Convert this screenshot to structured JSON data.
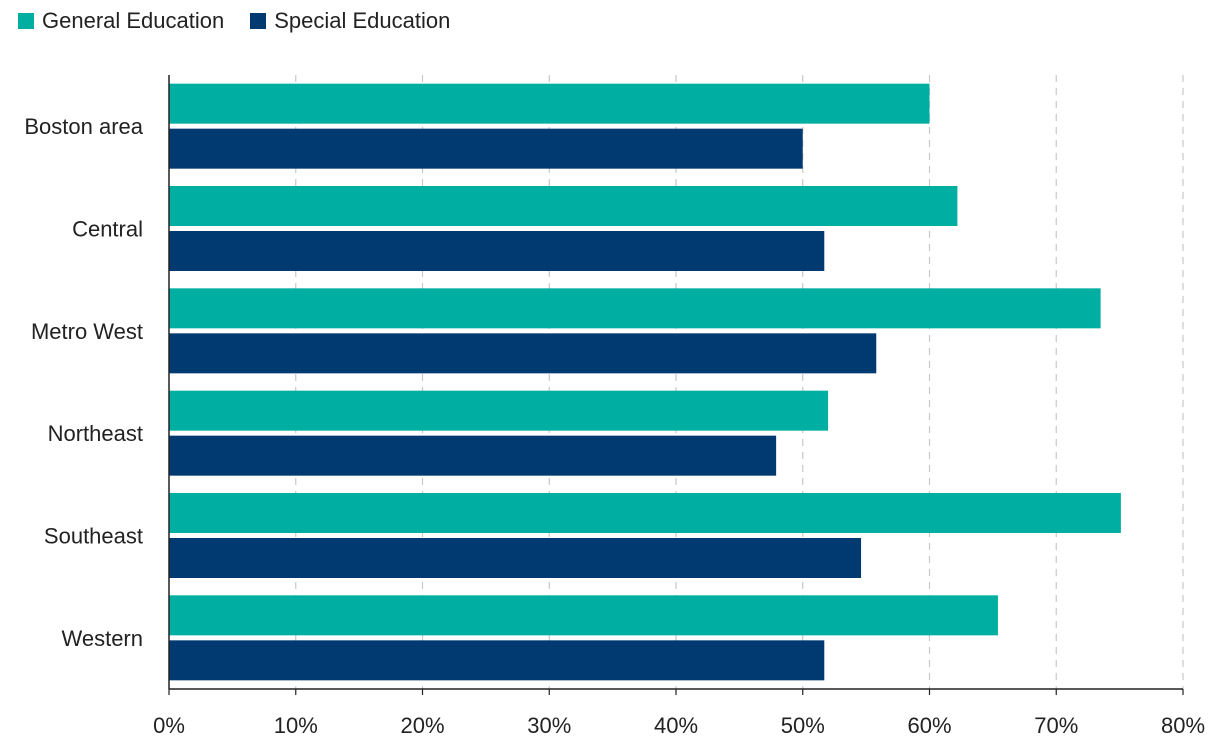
{
  "chart_data": {
    "type": "bar",
    "orientation": "horizontal",
    "categories": [
      "Boston area",
      "Central",
      "Metro West",
      "Northeast",
      "Southeast",
      "Western"
    ],
    "series": [
      {
        "name": "General Education",
        "color": "#00AFA2",
        "values": [
          60,
          62.2,
          73.5,
          52,
          75.1,
          65.4
        ]
      },
      {
        "name": "Special Education",
        "color": "#003A70",
        "values": [
          50,
          51.7,
          55.8,
          47.9,
          54.6,
          51.7
        ]
      }
    ],
    "title": "",
    "xlabel": "",
    "ylabel": "",
    "xlim": [
      0,
      80
    ],
    "x_ticks": [
      0,
      10,
      20,
      30,
      40,
      50,
      60,
      70,
      80
    ],
    "x_tick_labels": [
      "0%",
      "10%",
      "20%",
      "30%",
      "40%",
      "50%",
      "60%",
      "70%",
      "80%"
    ],
    "grid": "vertical dashed",
    "legend_position": "top-left"
  }
}
